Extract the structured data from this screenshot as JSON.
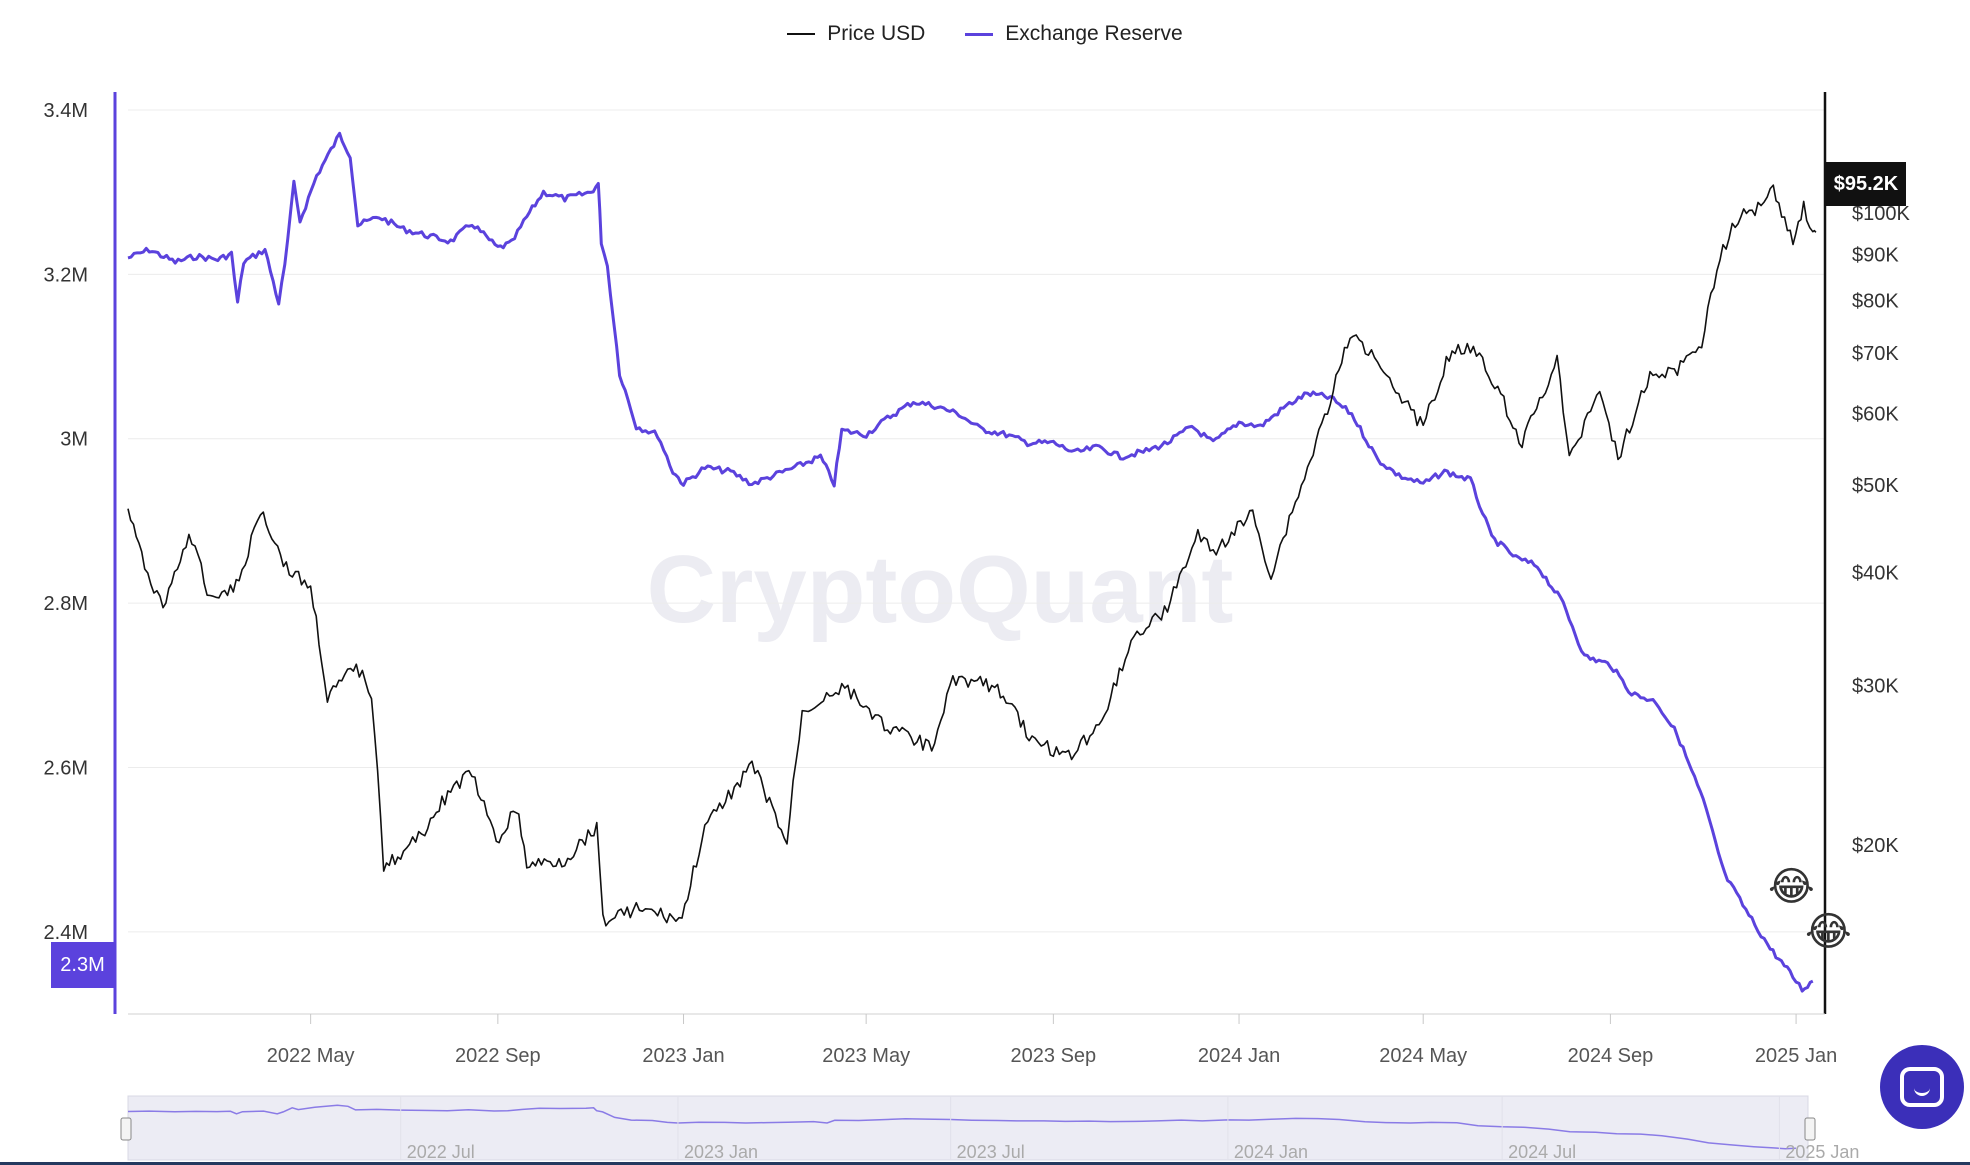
{
  "legend": [
    {
      "label": "Price USD",
      "color": "#111111"
    },
    {
      "label": "Exchange Reserve",
      "color": "#5b42dd"
    }
  ],
  "watermark": "CryptoQuant",
  "badges": {
    "reserve_current": "2.3M",
    "price_current": "$95.2K"
  },
  "emojis": [
    "😂",
    "😂"
  ],
  "icons": {
    "chat": "chat-bubble-icon"
  },
  "colors": {
    "reserve": "#5b42dd",
    "price": "#111111",
    "navigator_fill": "#ececf4"
  },
  "navigator": {
    "labels": [
      "2022 Jul",
      "2023 Jan",
      "2023 Jul",
      "2024 Jan",
      "2024 Jul",
      "2025 Jan"
    ]
  },
  "chart_data": {
    "type": "line",
    "x_ticks": [
      "2022 May",
      "2022 Sep",
      "2023 Jan",
      "2023 May",
      "2023 Sep",
      "2024 Jan",
      "2024 May",
      "2024 Sep",
      "2025 Jan"
    ],
    "y_left": {
      "ticks": [
        "3.4M",
        "3.2M",
        "3M",
        "2.8M",
        "2.6M",
        "2.4M"
      ],
      "tick_values": [
        3400000,
        3200000,
        3000000,
        2800000,
        2600000,
        2400000
      ],
      "range": [
        2300000,
        3400000
      ]
    },
    "y_right": {
      "scale": "log",
      "ticks": [
        "$100K",
        "$90K",
        "$80K",
        "$70K",
        "$60K",
        "$50K",
        "$40K",
        "$30K",
        "$20K"
      ],
      "tick_values": [
        100000,
        90000,
        80000,
        70000,
        60000,
        50000,
        40000,
        30000,
        20000
      ],
      "range": [
        13000,
        130000
      ]
    },
    "x_range": [
      "2022-01-01",
      "2025-01-20"
    ],
    "grid": "horizontal",
    "series": [
      {
        "name": "Exchange Reserve",
        "axis": "left",
        "points": [
          [
            "2022-01-01",
            3220000
          ],
          [
            "2022-01-15",
            3230000
          ],
          [
            "2022-02-01",
            3215000
          ],
          [
            "2022-02-15",
            3222000
          ],
          [
            "2022-03-01",
            3218000
          ],
          [
            "2022-03-10",
            3225000
          ],
          [
            "2022-03-14",
            3165000
          ],
          [
            "2022-03-18",
            3215000
          ],
          [
            "2022-04-01",
            3230000
          ],
          [
            "2022-04-10",
            3165000
          ],
          [
            "2022-04-14",
            3210000
          ],
          [
            "2022-04-20",
            3310000
          ],
          [
            "2022-04-24",
            3265000
          ],
          [
            "2022-05-05",
            3320000
          ],
          [
            "2022-05-20",
            3370000
          ],
          [
            "2022-05-27",
            3345000
          ],
          [
            "2022-06-01",
            3260000
          ],
          [
            "2022-06-15",
            3270000
          ],
          [
            "2022-07-01",
            3255000
          ],
          [
            "2022-07-15",
            3248000
          ],
          [
            "2022-08-01",
            3240000
          ],
          [
            "2022-08-15",
            3262000
          ],
          [
            "2022-09-01",
            3232000
          ],
          [
            "2022-09-10",
            3238000
          ],
          [
            "2022-09-20",
            3270000
          ],
          [
            "2022-10-01",
            3300000
          ],
          [
            "2022-10-15",
            3292000
          ],
          [
            "2022-11-01",
            3300000
          ],
          [
            "2022-11-06",
            3310000
          ],
          [
            "2022-11-08",
            3240000
          ],
          [
            "2022-11-12",
            3210000
          ],
          [
            "2022-11-20",
            3080000
          ],
          [
            "2022-12-01",
            3015000
          ],
          [
            "2022-12-15",
            3005000
          ],
          [
            "2022-12-25",
            2960000
          ],
          [
            "2023-01-01",
            2945000
          ],
          [
            "2023-01-15",
            2965000
          ],
          [
            "2023-02-01",
            2960000
          ],
          [
            "2023-02-15",
            2945000
          ],
          [
            "2023-03-01",
            2955000
          ],
          [
            "2023-03-15",
            2965000
          ],
          [
            "2023-04-01",
            2978000
          ],
          [
            "2023-04-10",
            2945000
          ],
          [
            "2023-04-15",
            3010000
          ],
          [
            "2023-05-01",
            3005000
          ],
          [
            "2023-05-15",
            3025000
          ],
          [
            "2023-06-01",
            3045000
          ],
          [
            "2023-06-15",
            3040000
          ],
          [
            "2023-07-01",
            3030000
          ],
          [
            "2023-07-15",
            3012000
          ],
          [
            "2023-08-01",
            3005000
          ],
          [
            "2023-08-15",
            2995000
          ],
          [
            "2023-09-01",
            2995000
          ],
          [
            "2023-09-15",
            2983000
          ],
          [
            "2023-10-01",
            2990000
          ],
          [
            "2023-10-15",
            2978000
          ],
          [
            "2023-11-01",
            2985000
          ],
          [
            "2023-11-15",
            2995000
          ],
          [
            "2023-12-01",
            3015000
          ],
          [
            "2023-12-15",
            2995000
          ],
          [
            "2024-01-01",
            3020000
          ],
          [
            "2024-01-15",
            3015000
          ],
          [
            "2024-02-01",
            3040000
          ],
          [
            "2024-02-15",
            3055000
          ],
          [
            "2024-03-01",
            3050000
          ],
          [
            "2024-03-15",
            3030000
          ],
          [
            "2024-04-01",
            2975000
          ],
          [
            "2024-04-15",
            2955000
          ],
          [
            "2024-05-01",
            2945000
          ],
          [
            "2024-05-15",
            2960000
          ],
          [
            "2024-06-01",
            2950000
          ],
          [
            "2024-06-15",
            2880000
          ],
          [
            "2024-07-01",
            2855000
          ],
          [
            "2024-07-15",
            2845000
          ],
          [
            "2024-08-01",
            2800000
          ],
          [
            "2024-08-15",
            2735000
          ],
          [
            "2024-09-01",
            2725000
          ],
          [
            "2024-09-15",
            2690000
          ],
          [
            "2024-10-01",
            2680000
          ],
          [
            "2024-10-15",
            2640000
          ],
          [
            "2024-11-01",
            2560000
          ],
          [
            "2024-11-15",
            2470000
          ],
          [
            "2024-12-01",
            2420000
          ],
          [
            "2024-12-15",
            2380000
          ],
          [
            "2024-12-28",
            2350000
          ],
          [
            "2025-01-05",
            2330000
          ],
          [
            "2025-01-12",
            2340000
          ]
        ]
      },
      {
        "name": "Price USD",
        "axis": "right",
        "points": [
          [
            "2022-01-01",
            47000
          ],
          [
            "2022-01-10",
            41500
          ],
          [
            "2022-01-24",
            36500
          ],
          [
            "2022-02-10",
            44000
          ],
          [
            "2022-02-24",
            37500
          ],
          [
            "2022-03-15",
            39000
          ],
          [
            "2022-03-29",
            47000
          ],
          [
            "2022-04-15",
            40500
          ],
          [
            "2022-05-01",
            38500
          ],
          [
            "2022-05-12",
            29000
          ],
          [
            "2022-05-31",
            31500
          ],
          [
            "2022-06-10",
            29500
          ],
          [
            "2022-06-18",
            19000
          ],
          [
            "2022-07-01",
            19500
          ],
          [
            "2022-07-15",
            20800
          ],
          [
            "2022-08-01",
            23000
          ],
          [
            "2022-08-15",
            24000
          ],
          [
            "2022-08-31",
            20000
          ],
          [
            "2022-09-13",
            22000
          ],
          [
            "2022-09-20",
            19000
          ],
          [
            "2022-10-15",
            19200
          ],
          [
            "2022-11-05",
            21000
          ],
          [
            "2022-11-09",
            16500
          ],
          [
            "2022-12-01",
            17000
          ],
          [
            "2022-12-31",
            16500
          ],
          [
            "2023-01-15",
            20800
          ],
          [
            "2023-02-15",
            24500
          ],
          [
            "2023-03-10",
            20000
          ],
          [
            "2023-03-20",
            28000
          ],
          [
            "2023-04-15",
            30000
          ],
          [
            "2023-05-15",
            27000
          ],
          [
            "2023-06-15",
            25500
          ],
          [
            "2023-06-25",
            30500
          ],
          [
            "2023-07-15",
            30300
          ],
          [
            "2023-08-01",
            29200
          ],
          [
            "2023-08-18",
            26000
          ],
          [
            "2023-09-11",
            25100
          ],
          [
            "2023-10-01",
            27000
          ],
          [
            "2023-10-24",
            34000
          ],
          [
            "2023-11-15",
            36500
          ],
          [
            "2023-12-05",
            44000
          ],
          [
            "2023-12-15",
            42000
          ],
          [
            "2024-01-10",
            46500
          ],
          [
            "2024-01-22",
            39500
          ],
          [
            "2024-02-15",
            52000
          ],
          [
            "2024-03-01",
            62000
          ],
          [
            "2024-03-14",
            73000
          ],
          [
            "2024-04-01",
            69500
          ],
          [
            "2024-04-15",
            63000
          ],
          [
            "2024-05-01",
            58000
          ],
          [
            "2024-05-20",
            71000
          ],
          [
            "2024-06-07",
            70000
          ],
          [
            "2024-07-05",
            55500
          ],
          [
            "2024-07-28",
            68500
          ],
          [
            "2024-08-05",
            53000
          ],
          [
            "2024-08-25",
            64000
          ],
          [
            "2024-09-06",
            53500
          ],
          [
            "2024-09-27",
            66000
          ],
          [
            "2024-10-15",
            67000
          ],
          [
            "2024-10-31",
            72000
          ],
          [
            "2024-11-12",
            89000
          ],
          [
            "2024-11-22",
            98000
          ],
          [
            "2024-12-05",
            101000
          ],
          [
            "2024-12-17",
            106500
          ],
          [
            "2024-12-30",
            92500
          ],
          [
            "2025-01-06",
            102000
          ],
          [
            "2025-01-12",
            94500
          ],
          [
            "2025-01-14",
            95200
          ]
        ]
      }
    ]
  }
}
